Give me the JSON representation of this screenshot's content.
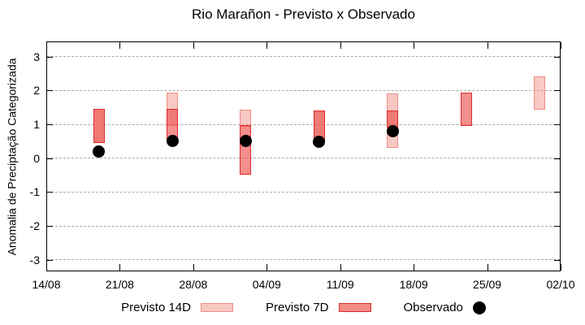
{
  "chart_data": {
    "type": "candlestick",
    "title": "Rio Marañon - Previsto x Observado",
    "ylabel": "Anomalia de Preciptação Categorizada",
    "yticks": [
      3,
      2,
      1,
      0,
      -1,
      -2,
      -3
    ],
    "ylim": [
      -3.34,
      3.45
    ],
    "grid": "horizontal-dashed",
    "x_axis": {
      "span_days": 49,
      "tick_labels": [
        "14/08",
        "21/08",
        "28/08",
        "04/09",
        "11/09",
        "18/09",
        "25/09",
        "02/10"
      ],
      "tick_days": [
        0,
        7,
        14,
        21,
        28,
        35,
        42,
        49
      ]
    },
    "points": [
      {
        "date": "19/08",
        "day": 5,
        "previsto_14d": [
          0.5,
          1.45
        ],
        "previsto_7d": [
          0.5,
          1.45
        ],
        "observado": 0.2
      },
      {
        "date": "26/08",
        "day": 12,
        "previsto_14d": [
          1.0,
          1.93
        ],
        "previsto_7d": [
          0.55,
          1.45
        ],
        "observado": 0.5
      },
      {
        "date": "02/09",
        "day": 19,
        "previsto_14d": [
          0.97,
          1.44
        ],
        "previsto_7d": [
          -0.44,
          0.97
        ],
        "observado": 0.52
      },
      {
        "date": "09/09",
        "day": 26,
        "previsto_14d": [
          0.55,
          1.42
        ],
        "previsto_7d": [
          0.55,
          1.42
        ],
        "observado": 0.48
      },
      {
        "date": "16/09",
        "day": 33,
        "previsto_14d": [
          0.36,
          1.92
        ],
        "previsto_7d": [
          0.96,
          1.4
        ],
        "observado": 0.8
      },
      {
        "date": "23/09",
        "day": 40,
        "previsto_14d": null,
        "previsto_7d": [
          1.0,
          1.93
        ],
        "observado": null
      },
      {
        "date": "30/09",
        "day": 47,
        "previsto_14d": [
          1.48,
          2.41
        ],
        "previsto_7d": null,
        "observado": null
      }
    ],
    "legend": [
      {
        "label": "Previsto 14D",
        "type": "box",
        "fill": "#f8c8c3",
        "border": "#ef8e85"
      },
      {
        "label": "Previsto 7D",
        "type": "box",
        "fill": "#f28b86",
        "border": "#dd2c2c"
      },
      {
        "label": "Observado",
        "type": "dot",
        "fill": "#000000"
      }
    ],
    "colors": {
      "p14_fill": "rgba(242,146,136,0.5)",
      "p14_border": "#ef8e85",
      "p7_fill": "rgba(236,75,70,0.62)",
      "p7_border": "#dd2c2c",
      "observado": "#000000",
      "grid": "#a9a9a9",
      "axis": "#000000"
    }
  }
}
